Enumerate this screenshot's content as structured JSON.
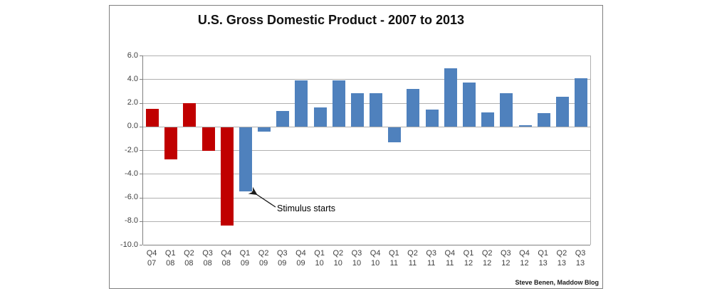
{
  "chart_data": {
    "type": "bar",
    "title": "U.S. Gross Domestic Product - 2007 to 2013",
    "xlabel": "",
    "ylabel": "",
    "ylim": [
      -10,
      6
    ],
    "ytick_step": 2,
    "ytick_labels": [
      "6.0",
      "4.0",
      "2.0",
      "0.0",
      "-2.0",
      "-4.0",
      "-6.0",
      "-8.0",
      "-10.0"
    ],
    "grid": "horizontal",
    "legend": "none",
    "categories": [
      "Q4 07",
      "Q1 08",
      "Q2 08",
      "Q3 08",
      "Q4 08",
      "Q1 09",
      "Q2 09",
      "Q3 09",
      "Q4 09",
      "Q1 10",
      "Q2 10",
      "Q3 10",
      "Q4 10",
      "Q1 11",
      "Q2 11",
      "Q3 11",
      "Q4 11",
      "Q1 12",
      "Q2 12",
      "Q3 12",
      "Q4 12",
      "Q1 13",
      "Q2 13",
      "Q3 13"
    ],
    "values": [
      1.5,
      -2.7,
      2.0,
      -2.0,
      -8.3,
      -5.4,
      -0.4,
      1.3,
      3.9,
      1.6,
      3.9,
      2.8,
      2.8,
      -1.3,
      3.2,
      1.4,
      4.9,
      3.7,
      1.2,
      2.8,
      0.1,
      1.1,
      2.5,
      4.1
    ],
    "bar_colors": [
      "red",
      "red",
      "red",
      "red",
      "red",
      "blue",
      "blue",
      "blue",
      "blue",
      "blue",
      "blue",
      "blue",
      "blue",
      "blue",
      "blue",
      "blue",
      "blue",
      "blue",
      "blue",
      "blue",
      "blue",
      "blue",
      "blue",
      "blue"
    ],
    "palette": {
      "red": "#C00000",
      "blue": "#4F81BD"
    },
    "annotation": {
      "text": "Stimulus starts",
      "target_category": "Q1 09",
      "target_value": -5.4
    },
    "credit": "Steve Benen, Maddow Blog"
  }
}
